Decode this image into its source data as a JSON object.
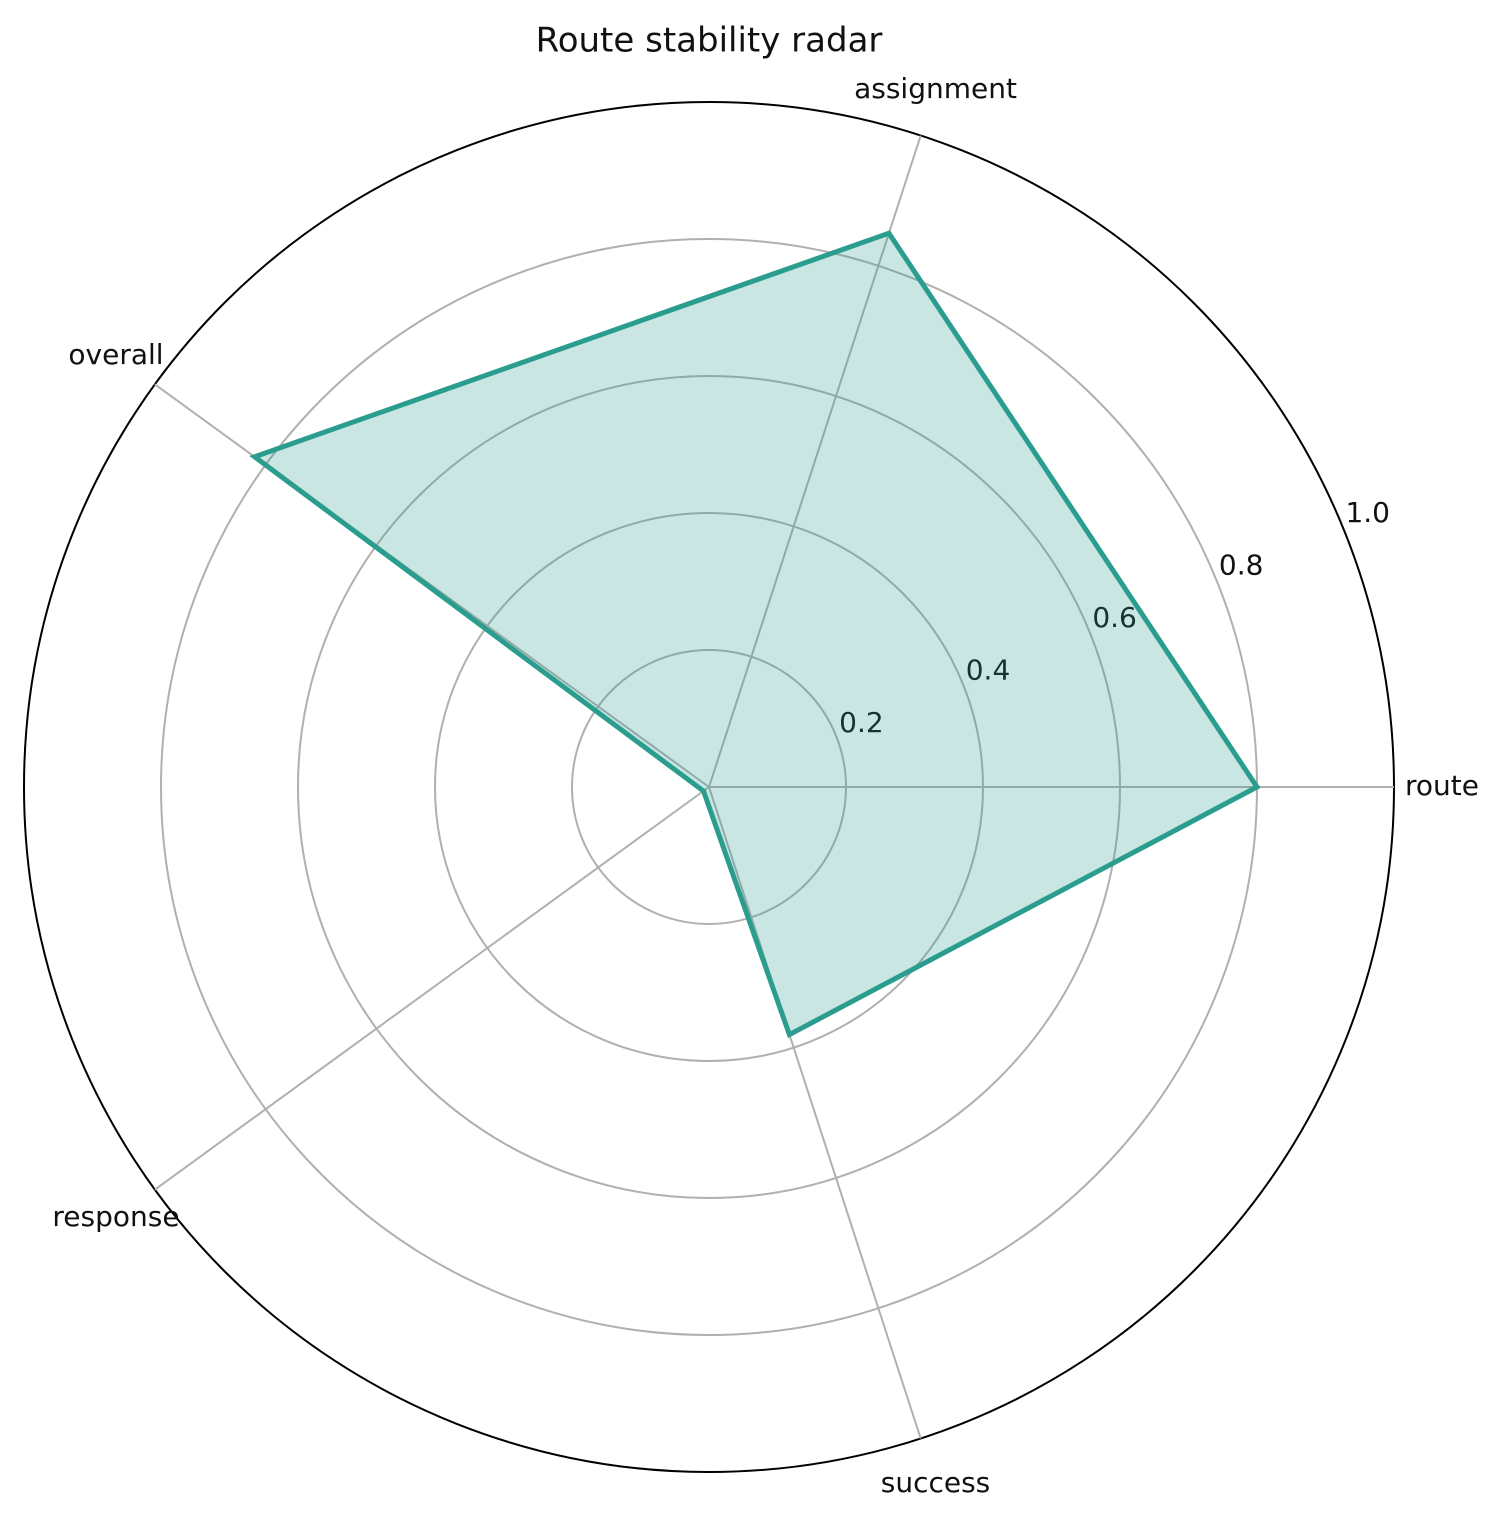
{
  "chart_data": {
    "type": "radar",
    "title": "Route stability radar",
    "categories": [
      "route",
      "assignment",
      "overall",
      "response",
      "success"
    ],
    "series": [
      {
        "color": "#2a9d8f",
        "values": [
          0.8,
          0.85,
          0.82,
          0.01,
          0.38
        ]
      }
    ],
    "rlim": [
      0,
      1
    ],
    "rticks": [
      0.2,
      0.4,
      0.6,
      0.8,
      {
        "value": 1,
        "label": "1.0"
      }
    ],
    "grid": true
  }
}
